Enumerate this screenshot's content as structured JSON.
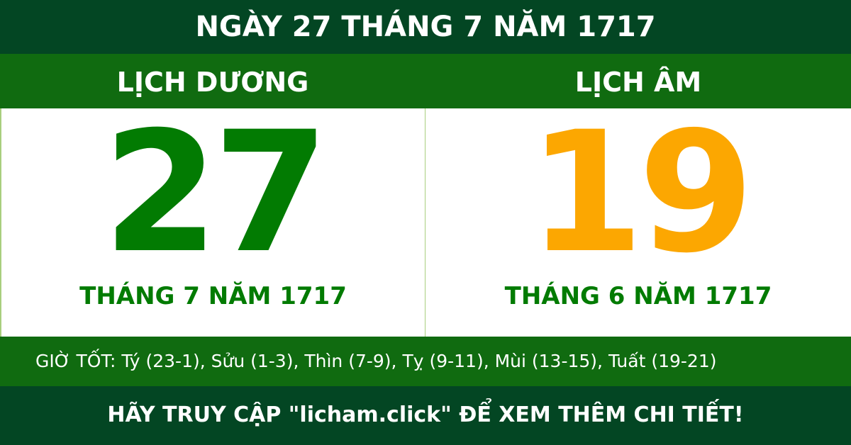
{
  "header": {
    "title": "NGÀY 27 THÁNG 7 NĂM 1717"
  },
  "solar": {
    "label": "LỊCH DƯƠNG",
    "day": "27",
    "month_year": "THÁNG 7 NĂM 1717"
  },
  "lunar": {
    "label": "LỊCH ÂM",
    "day": "19",
    "month_year": "THÁNG 6 NĂM 1717"
  },
  "good_hours": "GIỜ TỐT: Tý (23-1), Sửu (1-3), Thìn (7-9), Tỵ (9-11), Mùi (13-15), Tuất (19-21)",
  "footer": {
    "text": "HÃY TRUY CẬP \"licham.click\" ĐỂ XEM THÊM CHI TIẾT!"
  },
  "colors": {
    "dark_green": "#034623",
    "green": "#106b10",
    "day_green": "#027b02",
    "lunar_orange": "#fca701"
  }
}
